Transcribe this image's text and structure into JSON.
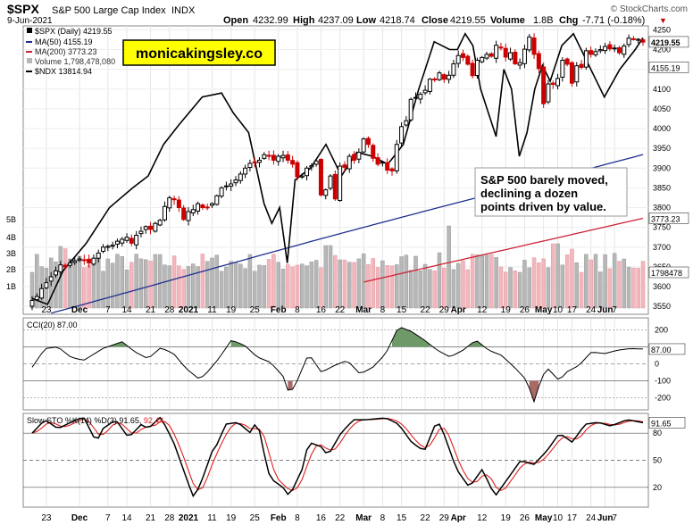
{
  "header": {
    "symbol": "$SPX",
    "name": "S&P 500 Large Cap Index",
    "exchange": "INDX",
    "watermark": "© StockCharts.com",
    "date": "9-Jun-2021",
    "open_label": "Open",
    "open": "4232.99",
    "high_label": "High",
    "high": "4237.09",
    "low_label": "Low",
    "low": "4218.74",
    "close_label": "Close",
    "close": "4219.55",
    "volume_label": "Volume",
    "volume": "1.8B",
    "chg_label": "Chg",
    "chg": "-7.71 (-0.18%)",
    "chg_arrow": "▼"
  },
  "legend": [
    "$SPX (Daily) 4219.55",
    "MA(50) 4155.19",
    "MA(200) 3773.23",
    "Volume 1,798,478,080",
    "$NDX 13814.94"
  ],
  "logo_text": "monicakingsley.co",
  "annotation": [
    "S&P 500 barely moved,",
    "declining a dozen",
    "points driven by value."
  ],
  "date_labels": [
    "23",
    "Dec",
    "7",
    "14",
    "21",
    "28",
    "2021",
    "11",
    "19",
    "25",
    "Feb",
    "8",
    "16",
    "22",
    "Mar",
    "8",
    "15",
    "22",
    "29",
    "Apr",
    "12",
    "19",
    "26",
    "May",
    "10",
    "17",
    "24",
    "Jun",
    "7"
  ],
  "price_axis": [
    "4250",
    "4200",
    "4150",
    "4100",
    "4050",
    "4000",
    "3950",
    "3900",
    "3850",
    "3800",
    "3750",
    "3700",
    "3650",
    "3600",
    "3550"
  ],
  "price_tags": {
    "close": "4219.55",
    "ma50": "4155.19",
    "ma200": "3773.23",
    "volume": "1798478"
  },
  "volume_axis": [
    "5B",
    "4B",
    "3B",
    "2B",
    "1B"
  ],
  "cci": {
    "title": "CCI(20) 87.00",
    "axis": [
      "200",
      "100",
      "0",
      "-100",
      "-200"
    ],
    "tag": "87.00"
  },
  "sto": {
    "title_prefix": "Slow STO %K(14) %D(3) 91.65, ",
    "title_d": "92.44",
    "axis": [
      "80",
      "50",
      "20"
    ],
    "tag": "91.65"
  },
  "colors": {
    "up": "#000000",
    "down": "#cc0000",
    "ma50": "#1f2f8f",
    "ma200": "#cc2233",
    "ndx": "#000000",
    "vol_up": "#b7b7b7",
    "vol_down": "#f1b7bd",
    "cci_pos": "#6e9a6a",
    "cci_neg": "#a96a66",
    "sto_d": "#e02020",
    "logo_bg": "#ffff00"
  },
  "chart_data": [
    {
      "type": "candlestick",
      "title": "$SPX S&P 500 Large Cap Index INDX",
      "ylim": [
        3530,
        4260
      ],
      "series_close": [
        3565,
        3575,
        3595,
        3610,
        3625,
        3640,
        3655,
        3650,
        3660,
        3665,
        3670,
        3668,
        3660,
        3672,
        3685,
        3700,
        3702,
        3705,
        3715,
        3720,
        3725,
        3710,
        3730,
        3740,
        3752,
        3745,
        3760,
        3768,
        3803,
        3825,
        3820,
        3800,
        3770,
        3790,
        3795,
        3810,
        3800,
        3801,
        3810,
        3830,
        3850,
        3855,
        3860,
        3870,
        3885,
        3900,
        3912,
        3915,
        3920,
        3934,
        3930,
        3920,
        3930,
        3932,
        3920,
        3910,
        3878,
        3880,
        3900,
        3906,
        3918,
        3832,
        3845,
        3880,
        3822,
        3905,
        3902,
        3930,
        3920,
        3940,
        3974,
        3960,
        3925,
        3910,
        3915,
        3895,
        3893,
        3960,
        4005,
        4020,
        4074,
        4079,
        4087,
        4097,
        4125,
        4124,
        4141,
        4125,
        4135,
        4164,
        4185,
        4180,
        4163,
        4134,
        4173,
        4180,
        4188,
        4183,
        4211,
        4204,
        4181,
        4192,
        4164,
        4167,
        4201,
        4232,
        4188,
        4152,
        4063,
        4113,
        4112,
        4127,
        4173,
        4163,
        4115,
        4159,
        4155,
        4197,
        4188,
        4195,
        4200,
        4208,
        4202,
        4204,
        4192,
        4209,
        4229,
        4227,
        4226,
        4219
      ]
    },
    {
      "type": "line",
      "name": "MA(50)",
      "last": 4155.19
    },
    {
      "type": "line",
      "name": "MA(200)",
      "last": 3773.23
    },
    {
      "type": "line",
      "name": "$NDX",
      "last": 13814.94
    },
    {
      "type": "bar",
      "name": "Volume",
      "last": 1798478080
    },
    {
      "type": "area",
      "name": "CCI(20)",
      "last": 87.0,
      "ylim": [
        -260,
        260
      ]
    },
    {
      "type": "line",
      "name": "Slow STO %K(14) %D(3)",
      "k_last": 91.65,
      "d_last": 92.44,
      "ylim": [
        0,
        100
      ]
    }
  ]
}
